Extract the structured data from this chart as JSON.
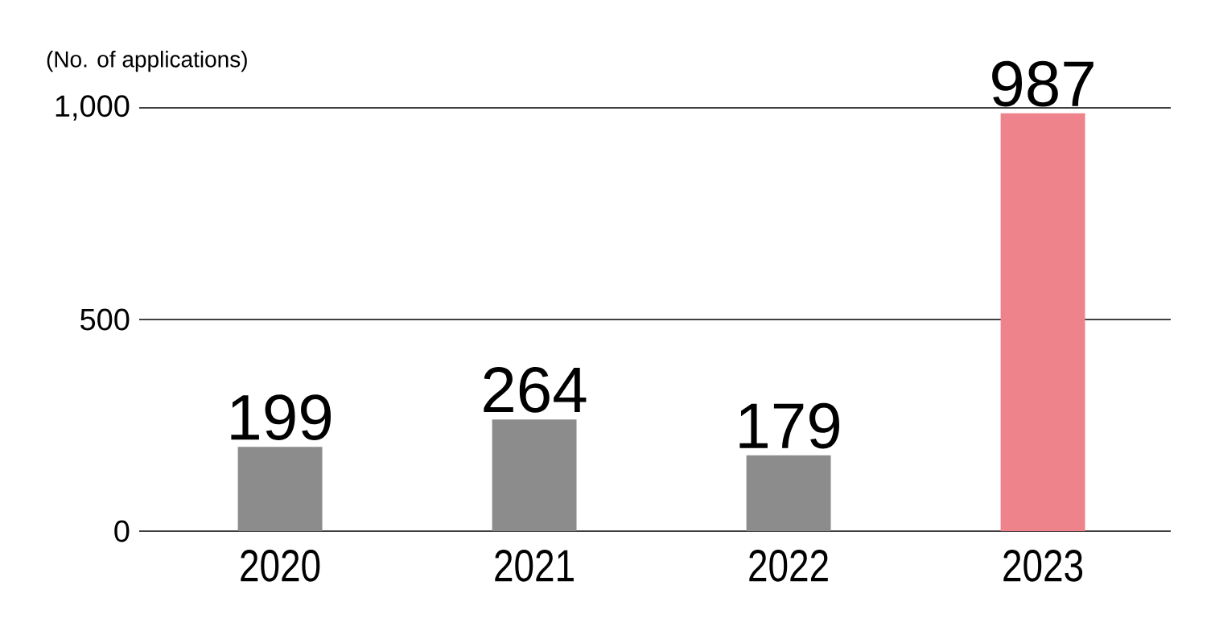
{
  "chart_data": {
    "type": "bar",
    "ylabel": "(No. of applications)",
    "categories": [
      "2020",
      "2021",
      "2022",
      "2023"
    ],
    "values": [
      199,
      264,
      179,
      987
    ],
    "colors": [
      "#8c8c8c",
      "#8c8c8c",
      "#8c8c8c",
      "#ee838b"
    ],
    "ylim": [
      0,
      1000
    ],
    "yticks": [
      0,
      500,
      {
        "value": 1000,
        "label": "1,000"
      }
    ],
    "grid": "y",
    "data_labels": true
  }
}
